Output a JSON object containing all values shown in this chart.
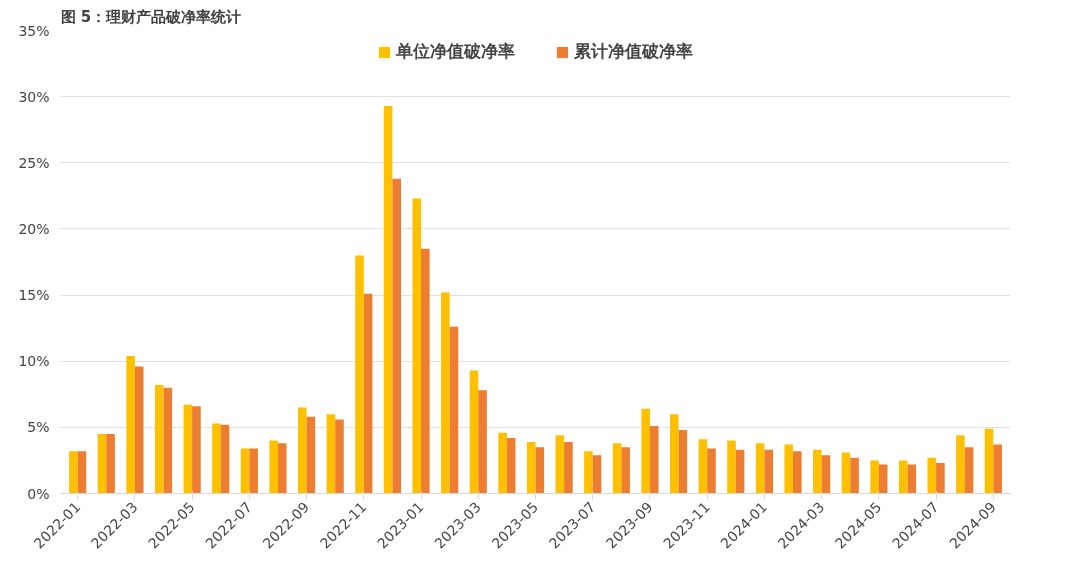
{
  "chart_data": {
    "type": "bar",
    "title": "图 5：理财产品破净率统计",
    "categories": [
      "2022-01",
      null,
      "2022-03",
      null,
      "2022-05",
      null,
      "2022-07",
      null,
      "2022-09",
      null,
      "2022-11",
      null,
      "2023-01",
      null,
      "2023-03",
      null,
      "2023-05",
      null,
      "2023-07",
      null,
      "2023-09",
      null,
      "2023-11",
      null,
      "2024-01",
      null,
      "2024-03",
      null,
      "2024-05",
      null,
      "2024-07",
      null,
      "2024-09"
    ],
    "series": [
      {
        "name": "单位净值破净率",
        "color": "#ffc000",
        "values": [
          3.2,
          4.5,
          10.4,
          8.2,
          6.7,
          5.3,
          3.4,
          4.0,
          6.5,
          6.0,
          18.0,
          29.3,
          22.3,
          15.2,
          9.3,
          4.6,
          3.9,
          4.4,
          3.2,
          3.8,
          6.4,
          6.0,
          4.1,
          4.0,
          3.8,
          3.7,
          3.3,
          3.1,
          2.5,
          2.5,
          2.7,
          4.4,
          4.9
        ]
      },
      {
        "name": "累计净值破净率",
        "color": "#ed7d31",
        "values": [
          3.2,
          4.5,
          9.6,
          8.0,
          6.6,
          5.2,
          3.4,
          3.8,
          5.8,
          5.6,
          15.1,
          23.8,
          18.5,
          12.6,
          7.8,
          4.2,
          3.5,
          3.9,
          2.9,
          3.5,
          5.1,
          4.8,
          3.4,
          3.3,
          3.3,
          3.2,
          2.9,
          2.7,
          2.2,
          2.2,
          2.3,
          3.5,
          3.7
        ]
      }
    ],
    "ylim": [
      0,
      35
    ],
    "yticks": [
      {
        "value": 0,
        "label": "0%"
      },
      {
        "value": 5,
        "label": "5%"
      },
      {
        "value": 10,
        "label": "10%"
      },
      {
        "value": 15,
        "label": "15%"
      },
      {
        "value": 20,
        "label": "20%"
      },
      {
        "value": 25,
        "label": "25%"
      },
      {
        "value": 30,
        "label": "30%"
      },
      {
        "value": 35,
        "label": "35%"
      }
    ],
    "grid": "y",
    "legend": "top"
  }
}
